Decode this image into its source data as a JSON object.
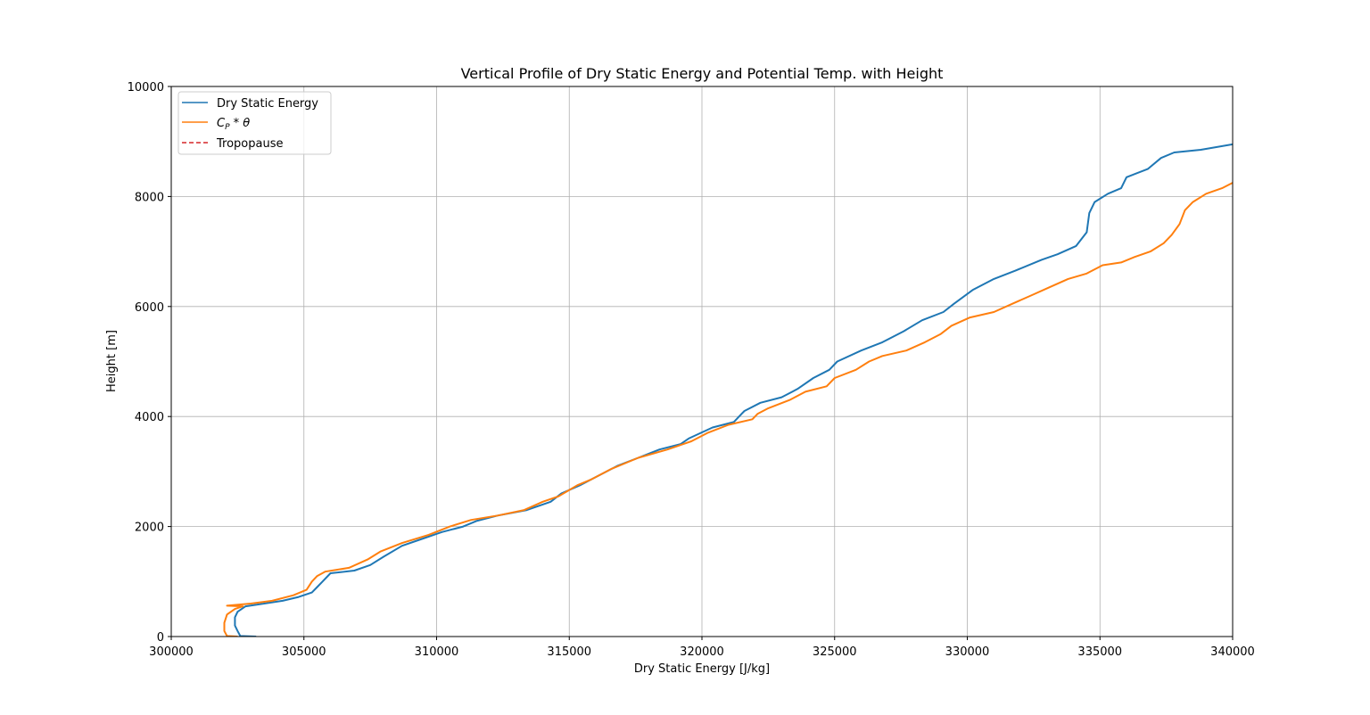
{
  "chart_data": {
    "type": "line",
    "title": "Vertical Profile of Dry Static Energy and Potential Temp. with Height",
    "xlabel": "Dry Static Energy [J/kg]",
    "ylabel": "Height [m]",
    "xlim": [
      300000,
      340000
    ],
    "ylim": [
      0,
      10000
    ],
    "xticks": [
      "300000",
      "305000",
      "310000",
      "315000",
      "320000",
      "325000",
      "330000",
      "335000",
      "340000"
    ],
    "yticks": [
      "0",
      "2000",
      "4000",
      "6000",
      "8000",
      "10000"
    ],
    "grid": true,
    "legend_position": "top-left",
    "legend": [
      {
        "label": "Dry Static Energy",
        "color": "#1f77b4",
        "style": "solid"
      },
      {
        "label": "C_P * θ",
        "color": "#ff7f0e",
        "style": "solid"
      },
      {
        "label": "Tropopause",
        "color": "#d62728",
        "style": "dashed"
      }
    ],
    "series": [
      {
        "name": "Dry Static Energy",
        "color": "#1f77b4",
        "points": [
          [
            303200,
            0
          ],
          [
            302600,
            10
          ],
          [
            302500,
            100
          ],
          [
            302400,
            200
          ],
          [
            302400,
            350
          ],
          [
            302500,
            450
          ],
          [
            302800,
            550
          ],
          [
            303500,
            600
          ],
          [
            304200,
            650
          ],
          [
            304800,
            720
          ],
          [
            305300,
            800
          ],
          [
            305500,
            900
          ],
          [
            305700,
            1000
          ],
          [
            306000,
            1150
          ],
          [
            306900,
            1200
          ],
          [
            307500,
            1300
          ],
          [
            308000,
            1450
          ],
          [
            308700,
            1650
          ],
          [
            309300,
            1750
          ],
          [
            310200,
            1900
          ],
          [
            311000,
            2000
          ],
          [
            311500,
            2100
          ],
          [
            312300,
            2200
          ],
          [
            313400,
            2300
          ],
          [
            314300,
            2450
          ],
          [
            314700,
            2600
          ],
          [
            315400,
            2750
          ],
          [
            316000,
            2900
          ],
          [
            316800,
            3100
          ],
          [
            317600,
            3250
          ],
          [
            318400,
            3400
          ],
          [
            319200,
            3500
          ],
          [
            319500,
            3600
          ],
          [
            320400,
            3800
          ],
          [
            321200,
            3900
          ],
          [
            321500,
            4050
          ],
          [
            321600,
            4100
          ],
          [
            322200,
            4250
          ],
          [
            323000,
            4350
          ],
          [
            323600,
            4500
          ],
          [
            324200,
            4700
          ],
          [
            324800,
            4850
          ],
          [
            325100,
            5000
          ],
          [
            326000,
            5200
          ],
          [
            326800,
            5350
          ],
          [
            327600,
            5550
          ],
          [
            328300,
            5750
          ],
          [
            329100,
            5900
          ],
          [
            329500,
            6050
          ],
          [
            330200,
            6300
          ],
          [
            331000,
            6500
          ],
          [
            331800,
            6650
          ],
          [
            332800,
            6850
          ],
          [
            333400,
            6950
          ],
          [
            334100,
            7100
          ],
          [
            334500,
            7350
          ],
          [
            334600,
            7700
          ],
          [
            334800,
            7900
          ],
          [
            335300,
            8050
          ],
          [
            335800,
            8150
          ],
          [
            336000,
            8350
          ],
          [
            336800,
            8500
          ],
          [
            337300,
            8700
          ],
          [
            337800,
            8800
          ],
          [
            338800,
            8850
          ],
          [
            340000,
            8950
          ]
        ]
      },
      {
        "name": "C_P * θ",
        "color": "#ff7f0e",
        "points": [
          [
            302500,
            0
          ],
          [
            302100,
            10
          ],
          [
            302000,
            100
          ],
          [
            302000,
            250
          ],
          [
            302100,
            400
          ],
          [
            302400,
            500
          ],
          [
            302700,
            550
          ],
          [
            302100,
            560
          ],
          [
            303000,
            600
          ],
          [
            303800,
            650
          ],
          [
            304600,
            750
          ],
          [
            305100,
            850
          ],
          [
            305300,
            1000
          ],
          [
            305500,
            1100
          ],
          [
            305800,
            1180
          ],
          [
            306700,
            1250
          ],
          [
            307400,
            1400
          ],
          [
            307900,
            1550
          ],
          [
            308700,
            1700
          ],
          [
            309700,
            1850
          ],
          [
            310500,
            2000
          ],
          [
            311300,
            2120
          ],
          [
            312300,
            2200
          ],
          [
            313300,
            2300
          ],
          [
            314000,
            2450
          ],
          [
            314600,
            2550
          ],
          [
            315300,
            2750
          ],
          [
            315800,
            2850
          ],
          [
            316600,
            3050
          ],
          [
            317600,
            3250
          ],
          [
            318700,
            3400
          ],
          [
            319600,
            3550
          ],
          [
            320200,
            3700
          ],
          [
            321000,
            3850
          ],
          [
            321900,
            3950
          ],
          [
            322100,
            4050
          ],
          [
            322500,
            4150
          ],
          [
            323300,
            4300
          ],
          [
            323900,
            4450
          ],
          [
            324700,
            4550
          ],
          [
            325000,
            4700
          ],
          [
            325800,
            4850
          ],
          [
            326300,
            5000
          ],
          [
            326800,
            5100
          ],
          [
            327700,
            5200
          ],
          [
            328400,
            5350
          ],
          [
            329000,
            5500
          ],
          [
            329400,
            5650
          ],
          [
            330100,
            5800
          ],
          [
            331000,
            5900
          ],
          [
            331700,
            6050
          ],
          [
            332400,
            6200
          ],
          [
            333100,
            6350
          ],
          [
            333800,
            6500
          ],
          [
            334500,
            6600
          ],
          [
            335100,
            6750
          ],
          [
            335800,
            6800
          ],
          [
            336300,
            6900
          ],
          [
            336900,
            7000
          ],
          [
            337400,
            7150
          ],
          [
            337700,
            7300
          ],
          [
            338000,
            7500
          ],
          [
            338200,
            7750
          ],
          [
            338500,
            7900
          ],
          [
            339000,
            8050
          ],
          [
            339600,
            8150
          ],
          [
            340000,
            8250
          ]
        ]
      }
    ]
  }
}
